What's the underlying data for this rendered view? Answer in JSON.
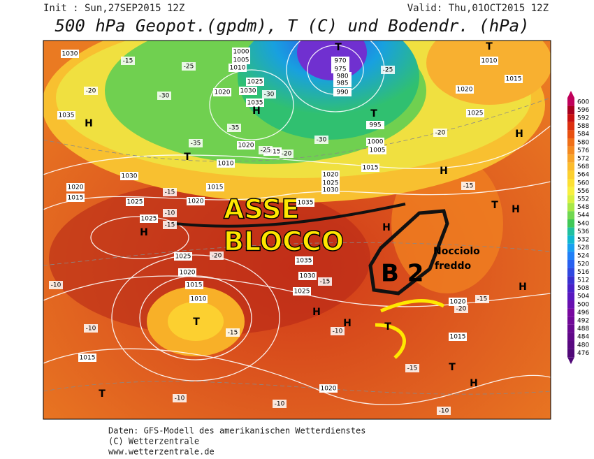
{
  "header": {
    "init": "Init : Sun,27SEP2015 12Z",
    "valid": "Valid: Thu,01OCT2015 12Z",
    "title": "500 hPa Geopot.(gpdm), T (C) und Bodendr. (hPa)"
  },
  "annotations": {
    "asse": "ASSE",
    "blocco": "BLOCCO",
    "b2": "B 2",
    "nocciolo": "Nocciolo",
    "freddo": "freddo"
  },
  "pressure_labels": [
    1030,
    1035,
    1030,
    1020,
    1015,
    1025,
    1025,
    1020,
    1015,
    1020,
    1025,
    1030,
    1035,
    1020,
    1015,
    1010,
    1020,
    1025,
    1030,
    1035,
    1035,
    1030,
    1025,
    1025,
    1020,
    1015,
    1010,
    1015,
    1020,
    1015,
    1020,
    1010,
    1015,
    1020,
    1025,
    995,
    1000,
    1005,
    1015,
    970,
    975,
    980,
    985,
    990,
    1000,
    1005,
    1010
  ],
  "temperature_labels": [
    -15,
    -20,
    -25,
    -30,
    -35,
    -30,
    -25,
    -20,
    -15,
    -10,
    -15,
    -20,
    -15,
    -10,
    -10,
    -15,
    -10,
    -15,
    -20,
    -15,
    -10,
    -10,
    -10,
    -15,
    -20,
    -25,
    -30,
    -35
  ],
  "centers": [
    "H",
    "H",
    "H",
    "H",
    "H",
    "H",
    "H",
    "H",
    "H",
    "H",
    "H",
    "T",
    "T",
    "T",
    "T",
    "T",
    "T",
    "T",
    "T",
    "T"
  ],
  "colorbar": {
    "ticks": [
      600,
      596,
      592,
      588,
      584,
      580,
      576,
      572,
      568,
      564,
      560,
      556,
      552,
      548,
      544,
      540,
      536,
      532,
      528,
      524,
      520,
      516,
      512,
      508,
      504,
      500,
      496,
      492,
      488,
      484,
      480,
      476
    ],
    "colors": [
      "#c0005a",
      "#a8001e",
      "#c81010",
      "#dc3010",
      "#e85010",
      "#f07018",
      "#f48a20",
      "#f8a428",
      "#fcbc2c",
      "#fcd030",
      "#fce034",
      "#f8f040",
      "#d8f040",
      "#a8e848",
      "#70d850",
      "#40c858",
      "#20c0a0",
      "#10b8d0",
      "#18a0f0",
      "#2080f8",
      "#2860f0",
      "#3048e0",
      "#3830d0",
      "#4820c8",
      "#5818c0",
      "#6810b0",
      "#7808a0",
      "#700898",
      "#680890",
      "#600888",
      "#580880",
      "#500878"
    ]
  },
  "footer": [
    "Daten: GFS-Modell des amerikanischen Wetterdienstes",
    "(C) Wetterzentrale",
    "www.wetterzentrale.de"
  ]
}
